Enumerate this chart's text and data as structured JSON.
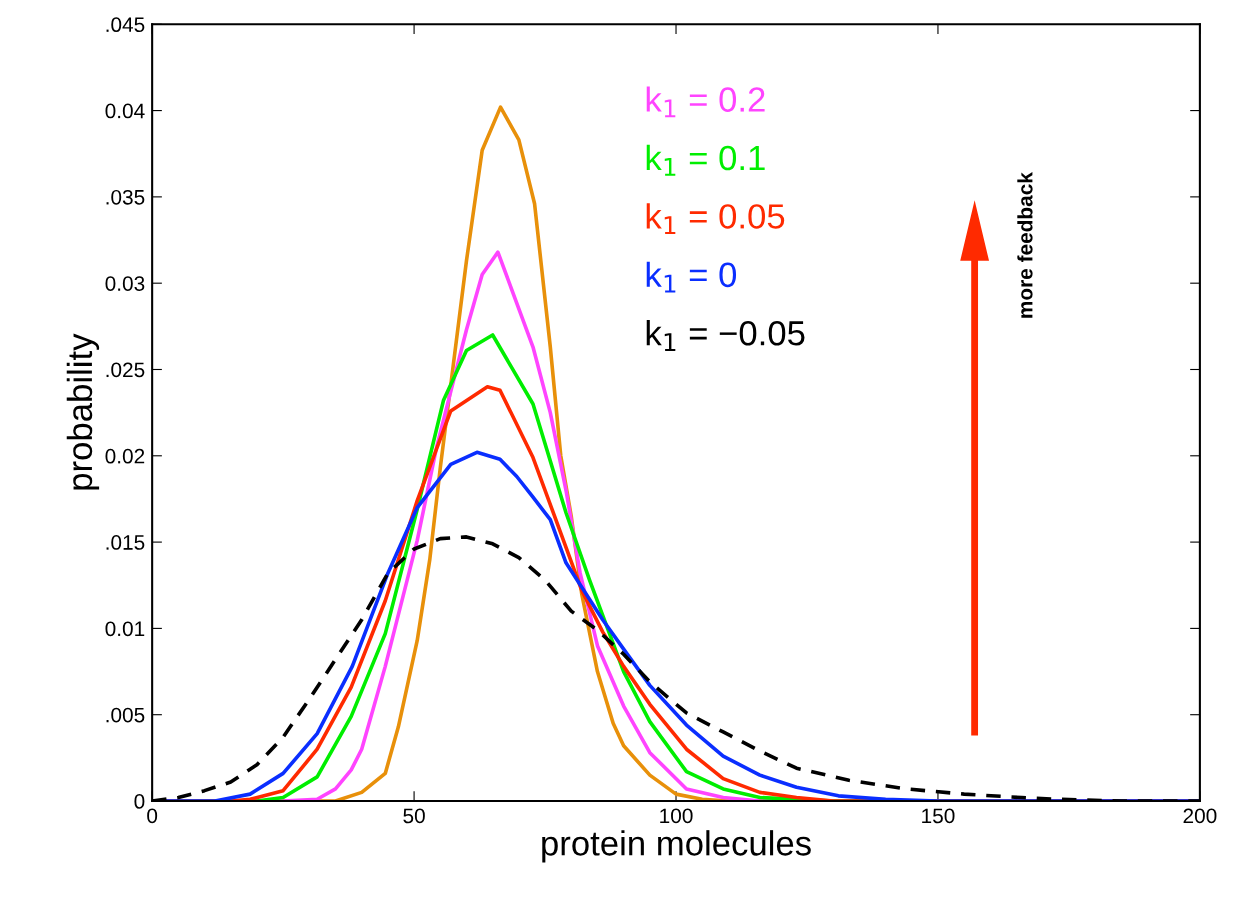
{
  "chart_data": {
    "type": "line",
    "xlabel": "protein molecules",
    "ylabel": "probability",
    "xlim": [
      0,
      200
    ],
    "ylim": [
      0,
      0.045
    ],
    "xticks": [
      0,
      50,
      100,
      150,
      200
    ],
    "yticks": [
      0,
      {
        "value": 0.005,
        "label": ".005"
      },
      {
        "value": 0.01,
        "label": "0.01"
      },
      {
        "value": 0.015,
        "label": ".015"
      },
      {
        "value": 0.02,
        "label": "0.02"
      },
      {
        "value": 0.025,
        "label": ".025"
      },
      {
        "value": 0.03,
        "label": "0.03"
      },
      {
        "value": 0.035,
        "label": ".035"
      },
      {
        "value": 0.04,
        "label": "0.04"
      },
      {
        "value": 0.045,
        "label": ".045"
      }
    ],
    "grid": false,
    "legend": "top",
    "marker": "none",
    "annotations": [
      "more feedback"
    ],
    "series": [
      {
        "color": "#e8900a",
        "x": [
          0,
          30,
          35,
          40,
          44.5,
          47,
          50.6,
          53,
          55,
          60,
          63,
          66.5,
          70,
          73,
          76,
          78,
          80,
          82,
          85,
          88,
          90,
          95,
          100,
          105,
          110,
          200
        ],
        "values": [
          0,
          0,
          0,
          0.0005,
          0.0016,
          0.0043,
          0.0093,
          0.014,
          0.0193,
          0.0313,
          0.0377,
          0.0402,
          0.0383,
          0.0346,
          0.0263,
          0.02,
          0.0165,
          0.012,
          0.0075,
          0.0045,
          0.0032,
          0.0015,
          0.0004,
          0.0001,
          0,
          0
        ]
      },
      {
        "name": "k$_{1}$ = 0.2",
        "color": "#ff44ff",
        "x": [
          0,
          25,
          31.5,
          35,
          38,
          40,
          44.5,
          50.6,
          54.3,
          60,
          63,
          66,
          72.7,
          76,
          79,
          81.7,
          85,
          90,
          95,
          102,
          109,
          116,
          200
        ],
        "values": [
          0,
          0,
          0.0001,
          0.0007,
          0.0018,
          0.003,
          0.0078,
          0.0151,
          0.0205,
          0.0273,
          0.0305,
          0.0318,
          0.0263,
          0.0225,
          0.018,
          0.0132,
          0.009,
          0.0055,
          0.0028,
          0.0007,
          0.0002,
          0,
          0
        ]
      },
      {
        "name": "k$_{1}$ = 0.1",
        "color": "#00ee00",
        "x": [
          0,
          20,
          25,
          31.5,
          38,
          44.5,
          50.6,
          55.6,
          60,
          65,
          72.7,
          79,
          83.5,
          90,
          95,
          102,
          109,
          116,
          130,
          200
        ],
        "values": [
          0,
          0,
          0.0002,
          0.0014,
          0.0049,
          0.0097,
          0.0169,
          0.0232,
          0.0261,
          0.027,
          0.023,
          0.0167,
          0.0128,
          0.0075,
          0.0046,
          0.0017,
          0.0007,
          0.0002,
          0,
          0
        ]
      },
      {
        "name": "k$_{1}$ = 0.05",
        "color": "#ff2a00",
        "x": [
          0,
          15,
          18.7,
          25,
          31.5,
          38,
          44.5,
          50.6,
          57,
          64,
          66.4,
          72.7,
          79,
          82,
          86,
          90,
          95,
          102,
          109,
          116,
          123,
          130,
          200
        ],
        "values": [
          0,
          0,
          0.0001,
          0.0006,
          0.003,
          0.0066,
          0.0116,
          0.0174,
          0.0226,
          0.024,
          0.0238,
          0.0199,
          0.0147,
          0.0122,
          0.0098,
          0.0078,
          0.0056,
          0.003,
          0.0013,
          0.0005,
          0.0002,
          0,
          0
        ]
      },
      {
        "name": "k$_{1}$ = 0",
        "color": "#0a2eff",
        "x": [
          0,
          12,
          18.7,
          25,
          31.5,
          38.2,
          45,
          50.6,
          57,
          62,
          66.4,
          69.6,
          72.7,
          76,
          79,
          86,
          90,
          95,
          102,
          109,
          116,
          123,
          131,
          140,
          150,
          200
        ],
        "values": [
          0,
          0,
          0.0004,
          0.0016,
          0.0039,
          0.0078,
          0.0132,
          0.017,
          0.0195,
          0.0202,
          0.0198,
          0.0188,
          0.0176,
          0.0163,
          0.0138,
          0.0105,
          0.0088,
          0.0067,
          0.0044,
          0.0026,
          0.0015,
          0.0008,
          0.0003,
          0.0001,
          0,
          0
        ]
      },
      {
        "name": "k$_{1}$ = −0.05",
        "color": "#000000",
        "line_style": "dashed",
        "x": [
          0,
          5,
          10,
          15,
          20,
          25,
          30,
          35,
          40,
          45,
          50,
          55,
          60,
          65,
          70,
          75,
          80,
          85,
          90,
          95,
          102,
          109,
          116,
          123,
          133,
          144,
          155,
          166,
          173,
          185,
          200
        ],
        "values": [
          0,
          0.0002,
          0.0006,
          0.0011,
          0.0021,
          0.0037,
          0.0059,
          0.0082,
          0.0105,
          0.0132,
          0.0146,
          0.0152,
          0.0153,
          0.0149,
          0.0141,
          0.0128,
          0.011,
          0.0099,
          0.0085,
          0.0069,
          0.0051,
          0.004,
          0.0029,
          0.0019,
          0.0012,
          0.0007,
          0.0004,
          0.0002,
          0.0001,
          0,
          0
        ]
      }
    ]
  }
}
